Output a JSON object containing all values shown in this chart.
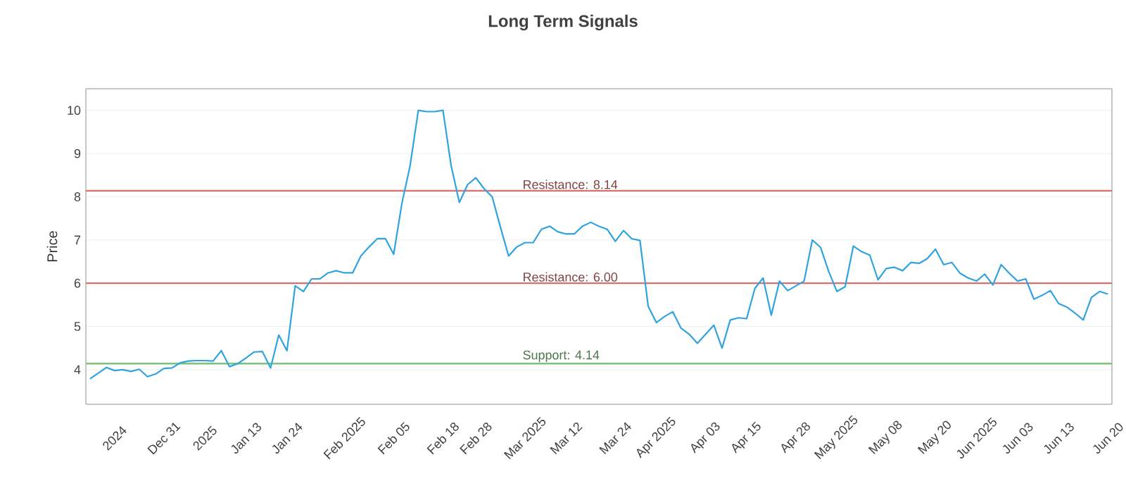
{
  "chart_data": {
    "type": "line",
    "title": "Long Term Signals",
    "ylabel": "Price",
    "categories": [
      null,
      null,
      null,
      "2024",
      null,
      null,
      null,
      null,
      null,
      "Dec 31",
      null,
      null,
      null,
      null,
      "2025",
      null,
      null,
      null,
      null,
      "Jan 13",
      null,
      null,
      null,
      null,
      "Jan 24",
      null,
      null,
      null,
      null,
      null,
      null,
      "Feb 2025",
      null,
      null,
      null,
      null,
      null,
      "Feb 05",
      null,
      null,
      null,
      null,
      null,
      "Feb 18",
      null,
      null,
      null,
      "Feb 28",
      null,
      null,
      null,
      null,
      null,
      "Mar 2025",
      null,
      null,
      null,
      null,
      "Mar 12",
      null,
      null,
      null,
      null,
      null,
      "Mar 24",
      null,
      null,
      null,
      null,
      "Apr 2025",
      null,
      null,
      null,
      null,
      null,
      "Apr 03",
      null,
      null,
      null,
      null,
      "Apr 15",
      null,
      null,
      null,
      null,
      null,
      "Apr 28",
      null,
      null,
      null,
      null,
      "May 2025",
      null,
      null,
      null,
      null,
      null,
      "May 08",
      null,
      null,
      null,
      null,
      null,
      "May 20",
      null,
      null,
      null,
      null,
      "Jun 2025",
      null,
      null,
      null,
      null,
      "Jun 03",
      null,
      null,
      null,
      null,
      "Jun 13",
      null,
      null,
      null,
      null,
      null,
      "Jun 20"
    ],
    "series": [
      {
        "color": "#2ea3e0",
        "values": [
          3.79,
          3.92,
          4.05,
          3.98,
          4.0,
          3.96,
          4.01,
          3.84,
          3.9,
          4.03,
          4.04,
          4.16,
          4.2,
          4.21,
          4.21,
          4.2,
          4.44,
          4.07,
          4.14,
          4.27,
          4.41,
          4.42,
          4.04,
          4.8,
          4.44,
          5.94,
          5.81,
          6.1,
          6.1,
          6.24,
          6.29,
          6.24,
          6.24,
          6.63,
          6.84,
          7.03,
          7.03,
          6.67,
          7.85,
          8.72,
          10.0,
          9.97,
          9.97,
          10.0,
          8.72,
          7.87,
          8.28,
          8.44,
          8.19,
          8.0,
          7.3,
          6.63,
          6.84,
          6.94,
          6.94,
          7.25,
          7.32,
          7.19,
          7.14,
          7.14,
          7.32,
          7.41,
          7.32,
          7.25,
          6.97,
          7.22,
          7.03,
          6.99,
          5.47,
          5.09,
          5.23,
          5.34,
          4.96,
          4.82,
          4.61,
          4.82,
          5.03,
          4.5,
          5.15,
          5.2,
          5.18,
          5.88,
          6.12,
          5.26,
          6.05,
          5.83,
          5.94,
          6.05,
          7.0,
          6.83,
          6.27,
          5.81,
          5.92,
          6.86,
          6.73,
          6.65,
          6.08,
          6.34,
          6.37,
          6.29,
          6.48,
          6.46,
          6.57,
          6.79,
          6.43,
          6.48,
          6.23,
          6.12,
          6.05,
          6.21,
          5.96,
          6.43,
          6.23,
          6.05,
          6.1,
          5.63,
          5.72,
          5.83,
          5.53,
          5.45,
          5.31,
          5.15,
          5.67,
          5.81,
          5.75
        ]
      }
    ],
    "ylim": [
      3.2,
      10.5
    ],
    "yticks": [
      4,
      5,
      6,
      7,
      8,
      9,
      10
    ],
    "grid": "y",
    "marker": "none",
    "line_style": "solid",
    "ref_lines": [
      {
        "axis": "y",
        "value": 8.14,
        "label": "Resistance: 8.14",
        "color": "#d9706f"
      },
      {
        "axis": "y",
        "value": 6.0,
        "label": "Resistance: 6.00",
        "color": "#d9706f"
      },
      {
        "axis": "y",
        "value": 4.14,
        "label": "Support: 4.14",
        "color": "#7cc47c"
      }
    ]
  }
}
